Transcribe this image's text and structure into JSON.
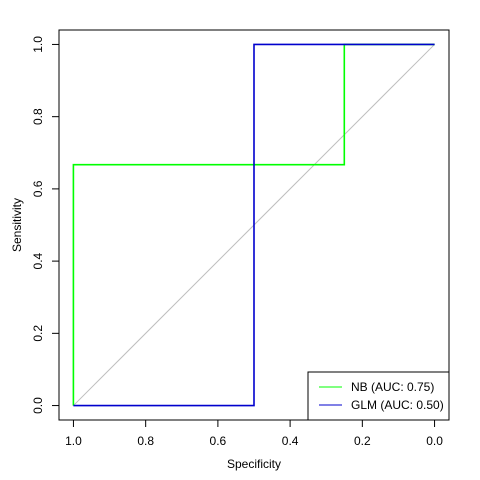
{
  "chart_data": {
    "type": "line",
    "title": "",
    "xlabel": "Specificity",
    "ylabel": "Sensitivity",
    "x_reversed": true,
    "xlim": [
      1.04,
      -0.04
    ],
    "ylim": [
      -0.04,
      1.04
    ],
    "x_ticks": [
      1.0,
      0.8,
      0.6,
      0.4,
      0.2,
      0.0
    ],
    "x_tick_labels": [
      "1.0",
      "0.8",
      "0.6",
      "0.4",
      "0.2",
      "0.0"
    ],
    "y_ticks": [
      0.0,
      0.2,
      0.4,
      0.6,
      0.8,
      1.0
    ],
    "y_tick_labels": [
      "0.0",
      "0.2",
      "0.4",
      "0.6",
      "0.8",
      "1.0"
    ],
    "grid": false,
    "reference_line": {
      "from": [
        1,
        0
      ],
      "to": [
        0,
        1
      ],
      "color": "#bebebe"
    },
    "legend_position": "bottom-right",
    "series": [
      {
        "name": "NB (AUC: 0.75)",
        "color": "#00ff00",
        "points": [
          [
            1.0,
            0.0
          ],
          [
            1.0,
            0.667
          ],
          [
            0.25,
            0.667
          ],
          [
            0.25,
            1.0
          ],
          [
            0.0,
            1.0
          ]
        ]
      },
      {
        "name": "GLM (AUC: 0.50)",
        "color": "#0000cd",
        "points": [
          [
            1.0,
            0.0
          ],
          [
            0.5,
            0.0
          ],
          [
            0.5,
            1.0
          ],
          [
            0.0,
            1.0
          ]
        ]
      }
    ]
  }
}
